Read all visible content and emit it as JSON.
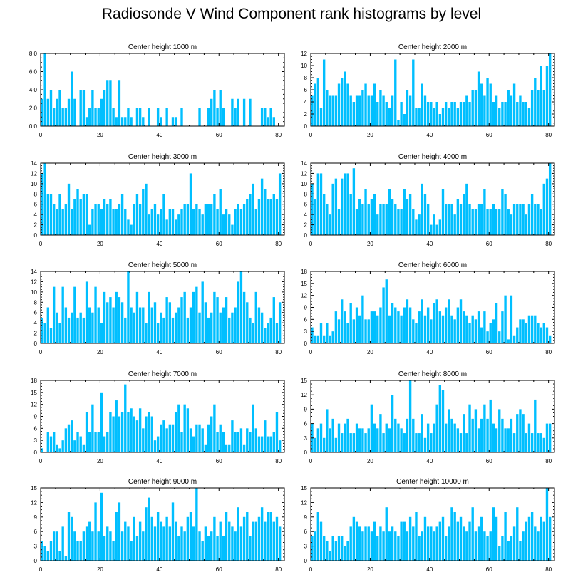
{
  "figure": {
    "title": "Radiosonde V Wind Component rank histograms by level",
    "bar_color": "#00BFFF",
    "axis_color": "#000000"
  },
  "chart_data": [
    {
      "type": "bar",
      "title": "Center height 1000 m",
      "xlim": [
        0,
        82
      ],
      "ylim": [
        0,
        8
      ],
      "xticks": [
        0,
        20,
        40,
        60,
        80
      ],
      "yticks": [
        0,
        2,
        4,
        6,
        8
      ],
      "ytick_labels": [
        "0.0",
        "2.0",
        "4.0",
        "6.0",
        "8.0"
      ],
      "values": [
        3,
        8,
        3,
        4,
        2,
        3,
        4,
        2,
        2,
        3,
        6,
        3,
        0,
        4,
        4,
        1,
        2,
        4,
        2,
        2,
        3,
        4,
        5,
        5,
        2,
        1,
        5,
        1,
        1,
        2,
        1,
        0,
        2,
        2,
        1,
        0,
        2,
        0,
        0,
        2,
        1,
        0,
        2,
        0,
        1,
        1,
        0,
        2,
        0,
        0,
        0,
        0,
        0,
        2,
        0,
        0,
        2,
        3,
        4,
        2,
        4,
        2,
        0,
        0,
        3,
        2,
        3,
        0,
        3,
        0,
        3,
        0,
        0,
        0,
        2,
        2,
        1,
        2,
        1,
        0,
        0
      ]
    },
    {
      "type": "bar",
      "title": "Center height 2000 m",
      "xlim": [
        0,
        82
      ],
      "ylim": [
        0,
        12
      ],
      "xticks": [
        0,
        20,
        40,
        60,
        80
      ],
      "yticks": [
        0,
        2,
        4,
        6,
        8,
        10,
        12
      ],
      "ytick_labels": [
        "0",
        "2",
        "4",
        "6",
        "8",
        "10",
        "12"
      ],
      "values": [
        5,
        7,
        8,
        3,
        11,
        6,
        5,
        5,
        5,
        7,
        8,
        9,
        7,
        5,
        4,
        5,
        5,
        6,
        7,
        5,
        5,
        7,
        4,
        6,
        5,
        4,
        3,
        5,
        11,
        1,
        4,
        2,
        6,
        5,
        11,
        3,
        3,
        7,
        5,
        4,
        4,
        3,
        4,
        2,
        3,
        4,
        3,
        4,
        4,
        3,
        4,
        4,
        5,
        4,
        6,
        6,
        9,
        7,
        5,
        8,
        7,
        4,
        5,
        3,
        4,
        4,
        6,
        5,
        7,
        4,
        5,
        4,
        4,
        3,
        6,
        8,
        6,
        10,
        6,
        10,
        12
      ]
    },
    {
      "type": "bar",
      "title": "Center height 3000 m",
      "xlim": [
        0,
        82
      ],
      "ylim": [
        0,
        14
      ],
      "xticks": [
        0,
        20,
        40,
        60,
        80
      ],
      "yticks": [
        0,
        2,
        4,
        6,
        8,
        10,
        12,
        14
      ],
      "ytick_labels": [
        "0",
        "2",
        "4",
        "6",
        "8",
        "10",
        "12",
        "14"
      ],
      "values": [
        12,
        14,
        8,
        8,
        6,
        5,
        8,
        5,
        6,
        10,
        5,
        7,
        9,
        7,
        8,
        8,
        2,
        5,
        6,
        6,
        5,
        7,
        6,
        7,
        5,
        5,
        6,
        8,
        5,
        3,
        2,
        6,
        8,
        6,
        9,
        10,
        4,
        5,
        6,
        4,
        5,
        8,
        3,
        5,
        5,
        3,
        4,
        5,
        6,
        6,
        12,
        5,
        6,
        5,
        4,
        6,
        6,
        6,
        8,
        5,
        9,
        4,
        5,
        4,
        2,
        5,
        6,
        5,
        6,
        7,
        8,
        10,
        5,
        7,
        11,
        9,
        7,
        7,
        8,
        7,
        12
      ]
    },
    {
      "type": "bar",
      "title": "Center height 4000 m",
      "xlim": [
        0,
        82
      ],
      "ylim": [
        0,
        14
      ],
      "xticks": [
        0,
        20,
        40,
        60,
        80
      ],
      "yticks": [
        0,
        2,
        4,
        6,
        8,
        10,
        12,
        14
      ],
      "ytick_labels": [
        "0",
        "2",
        "4",
        "6",
        "8",
        "10",
        "12",
        "14"
      ],
      "values": [
        10,
        7,
        12,
        12,
        8,
        6,
        4,
        10,
        11,
        5,
        11,
        12,
        12,
        8,
        13,
        5,
        7,
        6,
        9,
        6,
        7,
        8,
        4,
        6,
        6,
        6,
        9,
        7,
        6,
        5,
        5,
        9,
        7,
        8,
        5,
        3,
        4,
        10,
        8,
        6,
        2,
        4,
        2,
        3,
        9,
        6,
        6,
        6,
        4,
        7,
        6,
        8,
        10,
        6,
        5,
        5,
        6,
        6,
        9,
        5,
        5,
        6,
        5,
        5,
        9,
        8,
        5,
        4,
        6,
        6,
        6,
        6,
        4,
        6,
        8,
        6,
        6,
        5,
        10,
        11,
        14
      ]
    },
    {
      "type": "bar",
      "title": "Center height 5000 m",
      "xlim": [
        0,
        82
      ],
      "ylim": [
        0,
        14
      ],
      "xticks": [
        0,
        20,
        40,
        60,
        80
      ],
      "yticks": [
        0,
        2,
        4,
        6,
        8,
        10,
        12,
        14
      ],
      "ytick_labels": [
        "0",
        "2",
        "4",
        "6",
        "8",
        "10",
        "12",
        "14"
      ],
      "values": [
        5,
        4,
        7,
        3,
        11,
        6,
        4,
        11,
        7,
        5,
        6,
        11,
        5,
        6,
        5,
        12,
        7,
        6,
        11,
        7,
        4,
        10,
        8,
        9,
        7,
        10,
        9,
        8,
        5,
        14,
        7,
        6,
        10,
        7,
        7,
        4,
        10,
        7,
        8,
        4,
        6,
        5,
        9,
        8,
        5,
        6,
        7,
        9,
        10,
        5,
        7,
        10,
        11,
        6,
        12,
        8,
        5,
        6,
        10,
        9,
        6,
        7,
        9,
        5,
        6,
        7,
        12,
        14,
        10,
        8,
        5,
        4,
        10,
        7,
        6,
        3,
        4,
        5,
        9,
        4,
        8
      ]
    },
    {
      "type": "bar",
      "title": "Center height 6000 m",
      "xlim": [
        0,
        82
      ],
      "ylim": [
        0,
        18
      ],
      "xticks": [
        0,
        20,
        40,
        60,
        80
      ],
      "yticks": [
        0,
        3,
        6,
        9,
        12,
        15,
        18
      ],
      "ytick_labels": [
        "0",
        "3",
        "6",
        "9",
        "12",
        "15",
        "18"
      ],
      "values": [
        4,
        2,
        2,
        5,
        2,
        5,
        2,
        3,
        8,
        6,
        11,
        8,
        5,
        10,
        6,
        9,
        7,
        12,
        6,
        6,
        8,
        8,
        7,
        9,
        14,
        16,
        7,
        10,
        9,
        8,
        7,
        9,
        11,
        9,
        6,
        5,
        8,
        11,
        7,
        9,
        6,
        10,
        11,
        8,
        7,
        9,
        11,
        7,
        6,
        9,
        11,
        8,
        7,
        5,
        7,
        6,
        8,
        4,
        8,
        3,
        5,
        6,
        10,
        3,
        8,
        12,
        1,
        12,
        2,
        4,
        6,
        6,
        5,
        7,
        7,
        7,
        5,
        4,
        5,
        4,
        2
      ]
    },
    {
      "type": "bar",
      "title": "Center height 7000 m",
      "xlim": [
        0,
        82
      ],
      "ylim": [
        0,
        18
      ],
      "xticks": [
        0,
        20,
        40,
        60,
        80
      ],
      "yticks": [
        0,
        3,
        6,
        9,
        12,
        15,
        18
      ],
      "ytick_labels": [
        "0",
        "3",
        "6",
        "9",
        "12",
        "15",
        "18"
      ],
      "values": [
        1,
        0,
        5,
        4,
        5,
        2,
        1,
        3,
        6,
        7,
        8,
        3,
        5,
        4,
        2,
        10,
        5,
        12,
        5,
        5,
        15,
        4,
        5,
        10,
        9,
        13,
        9,
        10,
        17,
        10,
        11,
        9,
        8,
        11,
        6,
        9,
        10,
        9,
        3,
        4,
        7,
        8,
        6,
        7,
        7,
        10,
        12,
        5,
        12,
        11,
        6,
        4,
        7,
        7,
        6,
        2,
        7,
        9,
        12,
        5,
        7,
        5,
        2,
        2,
        8,
        5,
        5,
        6,
        2,
        6,
        5,
        12,
        6,
        4,
        4,
        8,
        4,
        4,
        5,
        10,
        3
      ]
    },
    {
      "type": "bar",
      "title": "Center height 8000 m",
      "xlim": [
        0,
        82
      ],
      "ylim": [
        0,
        15
      ],
      "xticks": [
        0,
        20,
        40,
        60,
        80
      ],
      "yticks": [
        0,
        3,
        6,
        9,
        12,
        15
      ],
      "ytick_labels": [
        "0",
        "3",
        "6",
        "9",
        "12",
        "15"
      ],
      "values": [
        6,
        3,
        5,
        6,
        3,
        9,
        5,
        7,
        3,
        6,
        4,
        6,
        7,
        4,
        4,
        6,
        5,
        5,
        4,
        5,
        10,
        6,
        5,
        8,
        4,
        6,
        5,
        12,
        7,
        6,
        5,
        4,
        7,
        15,
        7,
        4,
        4,
        8,
        3,
        6,
        4,
        6,
        10,
        14,
        13,
        6,
        9,
        7,
        6,
        5,
        4,
        8,
        4,
        10,
        7,
        9,
        5,
        7,
        10,
        7,
        11,
        6,
        5,
        9,
        7,
        5,
        5,
        7,
        4,
        8,
        9,
        8,
        4,
        6,
        4,
        11,
        4,
        4,
        3,
        6,
        6
      ]
    },
    {
      "type": "bar",
      "title": "Center height 9000 m",
      "xlim": [
        0,
        82
      ],
      "ylim": [
        0,
        15
      ],
      "xticks": [
        0,
        20,
        40,
        60,
        80
      ],
      "yticks": [
        0,
        3,
        6,
        9,
        12,
        15
      ],
      "ytick_labels": [
        "0",
        "3",
        "6",
        "9",
        "12",
        "15"
      ],
      "values": [
        4,
        3,
        2,
        4,
        6,
        6,
        2,
        7,
        1,
        10,
        9,
        6,
        4,
        4,
        6,
        7,
        8,
        6,
        12,
        6,
        14,
        5,
        7,
        6,
        4,
        10,
        12,
        6,
        8,
        7,
        4,
        9,
        5,
        8,
        6,
        11,
        13,
        9,
        7,
        10,
        8,
        7,
        9,
        7,
        12,
        8,
        5,
        7,
        6,
        9,
        10,
        7,
        15,
        6,
        4,
        7,
        5,
        6,
        9,
        5,
        8,
        5,
        10,
        8,
        7,
        6,
        11,
        7,
        9,
        10,
        5,
        8,
        8,
        9,
        11,
        8,
        10,
        10,
        8,
        9,
        7
      ]
    },
    {
      "type": "bar",
      "title": "Center height 10000 m",
      "xlim": [
        0,
        82
      ],
      "ylim": [
        0,
        15
      ],
      "xticks": [
        0,
        20,
        40,
        60,
        80
      ],
      "yticks": [
        0,
        3,
        6,
        9,
        12,
        15
      ],
      "ytick_labels": [
        "0",
        "3",
        "6",
        "9",
        "12",
        "15"
      ],
      "values": [
        5,
        6,
        10,
        8,
        5,
        4,
        2,
        5,
        4,
        5,
        5,
        3,
        4,
        7,
        9,
        8,
        7,
        6,
        7,
        7,
        6,
        8,
        5,
        7,
        6,
        11,
        6,
        7,
        6,
        5,
        8,
        8,
        6,
        9,
        7,
        10,
        5,
        6,
        9,
        7,
        7,
        6,
        7,
        8,
        9,
        5,
        7,
        11,
        10,
        8,
        9,
        7,
        6,
        8,
        11,
        6,
        7,
        9,
        6,
        5,
        6,
        11,
        9,
        3,
        5,
        10,
        4,
        5,
        7,
        11,
        4,
        6,
        8,
        9,
        10,
        7,
        6,
        9,
        8,
        15,
        9
      ]
    }
  ]
}
